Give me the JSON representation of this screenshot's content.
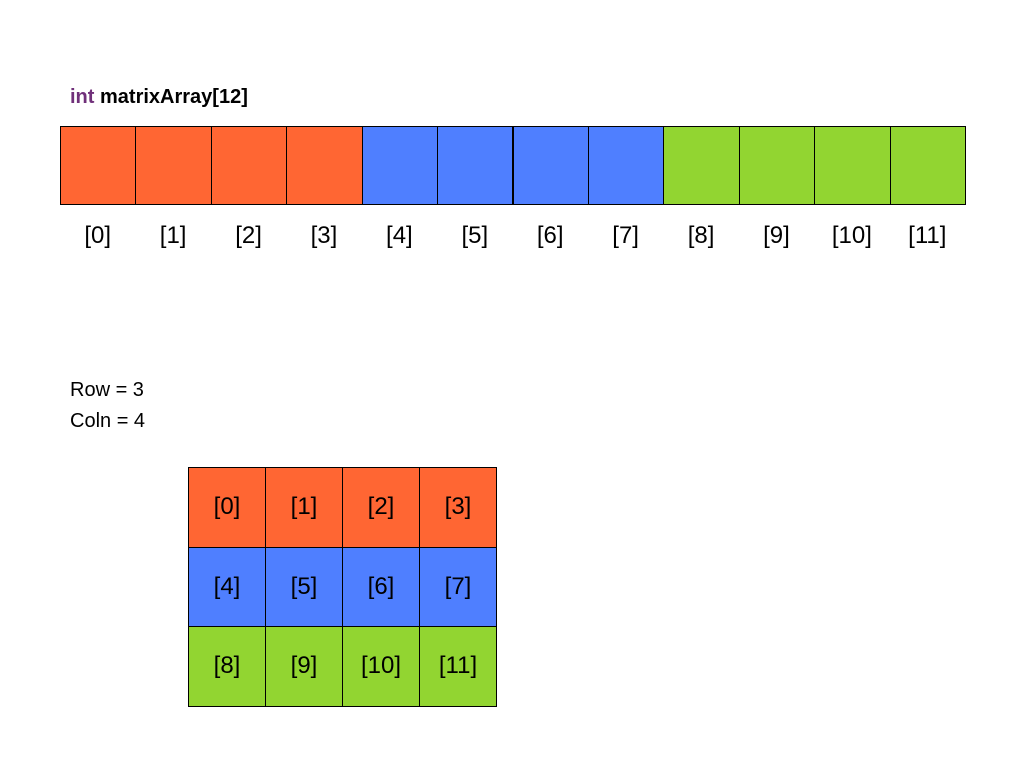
{
  "declaration": {
    "keyword": "int",
    "name": "matrixArray[12]"
  },
  "array": {
    "labels": [
      "[0]",
      "[1]",
      "[2]",
      "[3]",
      "[4]",
      "[5]",
      "[6]",
      "[7]",
      "[8]",
      "[9]",
      "[10]",
      "[11]"
    ]
  },
  "dimensions": {
    "row": "Row = 3",
    "coln": "Coln = 4"
  },
  "matrix": {
    "rows": [
      [
        "[0]",
        "[1]",
        "[2]",
        "[3]"
      ],
      [
        "[4]",
        "[5]",
        "[6]",
        "[7]"
      ],
      [
        "[8]",
        "[9]",
        "[10]",
        "[11]"
      ]
    ]
  }
}
